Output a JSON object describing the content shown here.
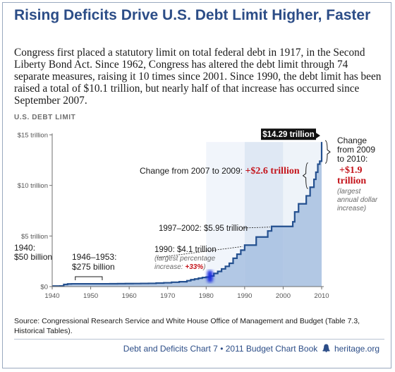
{
  "title": "Rising Deficits Drive U.S. Debt Limit Higher, Faster",
  "intro": "Congress first placed a statutory limit on total federal debt in 1917, in the Second Liberty Bond Act. Since 1962, Congress has altered the debt limit through 74 separate measures, raising it 10 times since 2001. Since 1990, the debt limit has been raised a total of $10.1 trillion, but nearly half of that increase has occurred since September 2007.",
  "chart_label": "U.S. DEBT LIMIT",
  "source": "Source: Congressional Research Service and White House Office of Management and Budget (Table 7.3, Historical Tables).",
  "footer": {
    "text": "Debt and Deficits Chart 7 • 2011 Budget Chart Book",
    "icon": "liberty-bell-icon",
    "site": "heritage.org"
  },
  "colors": {
    "title": "#2c4d87",
    "area": "#a7bfe0",
    "line": "#24508f",
    "highlight": "#1f2fe0",
    "red": "#c4141b"
  },
  "chart_data": {
    "type": "area",
    "title": "U.S. DEBT LIMIT",
    "xlim": [
      1940,
      2010
    ],
    "ylim": [
      0,
      15
    ],
    "x_ticks": [
      "1940",
      "1950",
      "1960",
      "1970",
      "1980",
      "1990",
      "2000",
      "2010"
    ],
    "y_ticks": [
      "$0",
      "$5 trillion",
      "$10 trillion",
      "$15 trillion"
    ],
    "series": [
      {
        "values": [
          [
            1940,
            0.05
          ],
          [
            1942,
            0.06
          ],
          [
            1943,
            0.21
          ],
          [
            1944,
            0.26
          ],
          [
            1945,
            0.275
          ],
          [
            1954,
            0.275
          ],
          [
            1955,
            0.28
          ],
          [
            1957,
            0.29
          ],
          [
            1959,
            0.295
          ],
          [
            1961,
            0.3
          ],
          [
            1963,
            0.31
          ],
          [
            1965,
            0.32
          ],
          [
            1967,
            0.35
          ],
          [
            1969,
            0.38
          ],
          [
            1971,
            0.43
          ],
          [
            1973,
            0.48
          ],
          [
            1975,
            0.58
          ],
          [
            1976,
            0.68
          ],
          [
            1977,
            0.75
          ],
          [
            1978,
            0.83
          ],
          [
            1979,
            0.9
          ],
          [
            1980,
            0.94
          ],
          [
            1981,
            1.05
          ],
          [
            1982,
            1.3
          ],
          [
            1983,
            1.5
          ],
          [
            1984,
            1.75
          ],
          [
            1985,
            2.0
          ],
          [
            1986,
            2.3
          ],
          [
            1987,
            2.8
          ],
          [
            1988,
            3.2
          ],
          [
            1989,
            3.6
          ],
          [
            1990,
            4.1
          ],
          [
            1993,
            4.9
          ],
          [
            1996,
            5.5
          ],
          [
            1997,
            5.95
          ],
          [
            2002,
            5.95
          ],
          [
            2002.5,
            6.4
          ],
          [
            2003,
            7.38
          ],
          [
            2004,
            8.18
          ],
          [
            2006,
            8.97
          ],
          [
            2007,
            9.82
          ],
          [
            2008,
            10.6
          ],
          [
            2008.5,
            11.3
          ],
          [
            2009,
            12.1
          ],
          [
            2009.5,
            12.39
          ],
          [
            2010,
            14.29
          ]
        ]
      }
    ],
    "highlight_year": 1981,
    "annotations": {
      "a1940": [
        "1940:",
        "$50 billion"
      ],
      "a1946": [
        "1946–1953:",
        "$275 billion"
      ],
      "a1990": {
        "text": "1990: $4.1 trillion",
        "note": "(largest percentage",
        "note2": "increase: ",
        "pct": "+33%",
        "close": ")"
      },
      "a1997": "1997–2002: $5.95 trillion",
      "a2007": {
        "text": "Change from 2007 to 2009: ",
        "value": "+$2.6 trillion"
      },
      "a2010": {
        "lines": [
          "Change",
          "from 2009",
          "to 2010:"
        ],
        "value": "+$1.9",
        "value2": "trillion",
        "notes": [
          "(largest",
          "annual dollar",
          "increase)"
        ]
      },
      "peak": "$14.29 trillion"
    }
  }
}
